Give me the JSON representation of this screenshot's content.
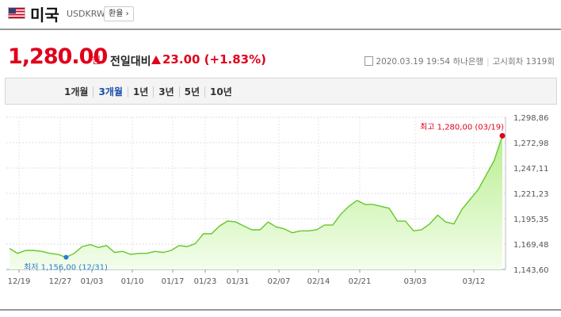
{
  "header": {
    "country": "미국",
    "code": "USDKRW",
    "fx_button": "환율"
  },
  "quote": {
    "price": "1,280.00",
    "unit": "원",
    "change_label": "전일대비",
    "change_value": "23.00 (+1.83%)",
    "datetime": "2020.03.19 19:54",
    "bank": "하나은행",
    "notice": "고시회차 1319회"
  },
  "periods": [
    "1개월",
    "3개월",
    "1년",
    "3년",
    "5년",
    "10년"
  ],
  "active_period": 1,
  "colors": {
    "up": "#e0001b",
    "line": "#63c82a",
    "fill": "#d8f6c0",
    "low": "#2a7bd0"
  },
  "chart_data": {
    "type": "area",
    "y_ticks": [
      "1,298,86",
      "1,272,98",
      "1,247,11",
      "1,221,23",
      "1,195,35",
      "1,169,48",
      "1,143,60"
    ],
    "x_ticks": [
      "12/19",
      "12/27",
      "01/03",
      "01/10",
      "01/17",
      "01/23",
      "01/31",
      "02/07",
      "02/14",
      "02/21",
      "03/03",
      "03/12"
    ],
    "ylim": [
      1143.6,
      1298.86
    ],
    "high_label": "최고 1,280,00 (03/19)",
    "low_label": "최저 1,156,00 (12/31)",
    "values": [
      1165,
      1160,
      1163,
      1163,
      1162,
      1160,
      1159,
      1156,
      1160,
      1167,
      1169,
      1166,
      1168,
      1161,
      1162,
      1159,
      1160,
      1160,
      1162,
      1161,
      1163,
      1168,
      1167,
      1170,
      1180,
      1180,
      1188,
      1193,
      1192,
      1188,
      1184,
      1184,
      1192,
      1187,
      1185,
      1181,
      1183,
      1183,
      1184,
      1189,
      1189,
      1200,
      1208,
      1214,
      1210,
      1210,
      1208,
      1206,
      1193,
      1193,
      1183,
      1184,
      1190,
      1199,
      1192,
      1190,
      1205,
      1215,
      1225,
      1240,
      1255,
      1280
    ],
    "high_index": 61,
    "low_index": 7
  }
}
